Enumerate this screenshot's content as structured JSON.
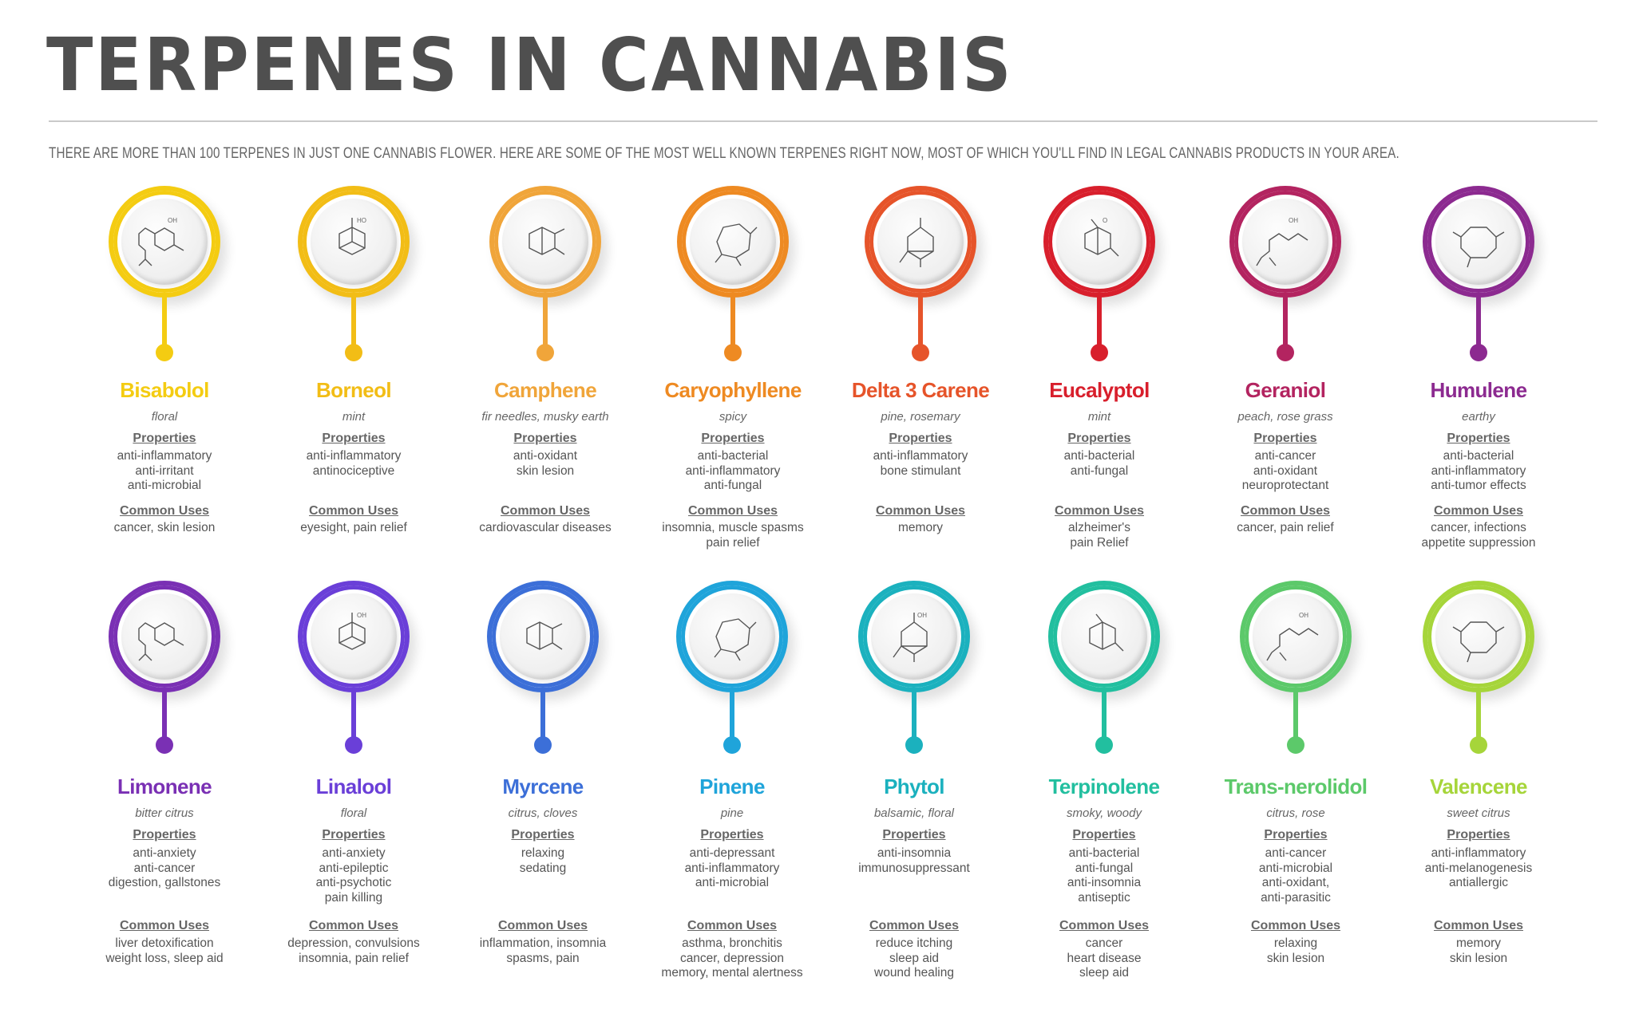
{
  "title": "TERPENES IN CANNABIS",
  "subtitle": "THERE ARE MORE THAN 100 TERPENES IN JUST ONE CANNABIS FLOWER. HERE ARE SOME OF THE MOST WELL KNOWN TERPENES RIGHT NOW, MOST OF WHICH YOU'LL FIND IN LEGAL CANNABIS PRODUCTS IN YOUR AREA.",
  "labels": {
    "properties": "Properties",
    "common_uses": "Common Uses"
  },
  "terpenes": [
    {
      "name": "Bisabolol",
      "aroma": "floral",
      "properties": [
        "anti-inflammatory",
        "anti-irritant",
        "anti-microbial"
      ],
      "uses": [
        "cancer, skin lesion"
      ],
      "color": "#f4cc12",
      "molecule_labels": [
        "OH"
      ]
    },
    {
      "name": "Borneol",
      "aroma": "mint",
      "properties": [
        "anti-inflammatory",
        "antinociceptive"
      ],
      "uses": [
        "eyesight, pain relief"
      ],
      "color": "#f2bd16",
      "molecule_labels": [
        "HO"
      ]
    },
    {
      "name": "Camphene",
      "aroma": "fir needles, musky earth",
      "properties": [
        "anti-oxidant",
        "skin lesion"
      ],
      "uses": [
        "cardiovascular diseases"
      ],
      "color": "#f0a53a",
      "molecule_labels": []
    },
    {
      "name": "Caryophyllene",
      "aroma": "spicy",
      "properties": [
        "anti-bacterial",
        "anti-inflammatory",
        "anti-fungal"
      ],
      "uses": [
        "insomnia, muscle spasms",
        "pain relief"
      ],
      "color": "#ee8a22",
      "molecule_labels": []
    },
    {
      "name": "Delta 3 Carene",
      "aroma": "pine, rosemary",
      "properties": [
        "anti-inflammatory",
        "bone stimulant"
      ],
      "uses": [
        "memory"
      ],
      "color": "#e6542a",
      "molecule_labels": []
    },
    {
      "name": "Eucalyptol",
      "aroma": "mint",
      "properties": [
        "anti-bacterial",
        "anti-fungal"
      ],
      "uses": [
        "alzheimer's",
        "pain Relief"
      ],
      "color": "#d81f2c",
      "molecule_labels": [
        "O"
      ]
    },
    {
      "name": "Geraniol",
      "aroma": "peach, rose grass",
      "properties": [
        "anti-cancer",
        "anti-oxidant",
        "neuroprotectant"
      ],
      "uses": [
        "cancer, pain relief"
      ],
      "color": "#b32460",
      "molecule_labels": [
        "OH"
      ]
    },
    {
      "name": "Humulene",
      "aroma": "earthy",
      "properties": [
        "anti-bacterial",
        "anti-inflammatory",
        "anti-tumor effects"
      ],
      "uses": [
        "cancer, infections",
        "appetite suppression"
      ],
      "color": "#8c2a90",
      "molecule_labels": []
    },
    {
      "name": "Limonene",
      "aroma": "bitter citrus",
      "properties": [
        "anti-anxiety",
        "anti-cancer",
        "digestion, gallstones"
      ],
      "uses": [
        "liver detoxification",
        "weight loss, sleep aid"
      ],
      "color": "#7a30b4",
      "molecule_labels": []
    },
    {
      "name": "Linalool",
      "aroma": "floral",
      "properties": [
        "anti-anxiety",
        "anti-epileptic",
        "anti-psychotic",
        "pain killing"
      ],
      "uses": [
        "depression, convulsions",
        "insomnia, pain relief"
      ],
      "color": "#6a3fd8",
      "molecule_labels": [
        "OH"
      ]
    },
    {
      "name": "Myrcene",
      "aroma": "citrus, cloves",
      "properties": [
        "relaxing",
        "sedating"
      ],
      "uses": [
        "inflammation,  insomnia",
        "spasms, pain"
      ],
      "color": "#3c6fd8",
      "molecule_labels": []
    },
    {
      "name": "Pinene",
      "aroma": "pine",
      "properties": [
        "anti-depressant",
        "anti-inflammatory",
        "anti-microbial"
      ],
      "uses": [
        "asthma, bronchitis",
        "cancer, depression",
        "memory, mental alertness"
      ],
      "color": "#1fa4da",
      "molecule_labels": []
    },
    {
      "name": "Phytol",
      "aroma": "balsamic, floral",
      "properties": [
        "anti-insomnia",
        "immunosuppressant"
      ],
      "uses": [
        "reduce itching",
        "sleep aid",
        "wound healing"
      ],
      "color": "#1bb1be",
      "molecule_labels": [
        "OH"
      ]
    },
    {
      "name": "Terpinolene",
      "aroma": "smoky, woody",
      "properties": [
        "anti-bacterial",
        "anti-fungal",
        "anti-insomnia",
        "antiseptic"
      ],
      "uses": [
        "cancer",
        "heart disease",
        "sleep aid"
      ],
      "color": "#22bf9f",
      "molecule_labels": []
    },
    {
      "name": "Trans-nerolidol",
      "aroma": "citrus, rose",
      "properties": [
        "anti-cancer",
        "anti-microbial",
        "anti-oxidant,",
        "anti-parasitic"
      ],
      "uses": [
        "relaxing",
        "skin lesion"
      ],
      "color": "#5cc96a",
      "molecule_labels": [
        "OH"
      ]
    },
    {
      "name": "Valencene",
      "aroma": "sweet citrus",
      "properties": [
        "anti-inflammatory",
        "anti-melanogenesis",
        "antiallergic"
      ],
      "uses": [
        "memory",
        "skin lesion"
      ],
      "color": "#a6d53a",
      "molecule_labels": []
    }
  ]
}
